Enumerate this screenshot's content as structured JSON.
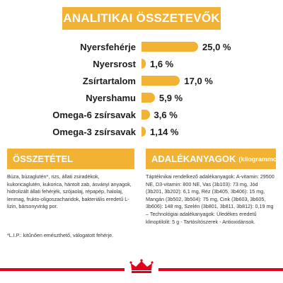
{
  "title": "ANALITIKAI ÖSSZETEVŐK",
  "colors": {
    "accent": "#f2b233",
    "brand": "#e2001a",
    "text": "#1c1c1c"
  },
  "nutrients": [
    {
      "label": "Nyersfehérje",
      "value_text": "25,0 %",
      "percent": 25.0
    },
    {
      "label": "Nyersrost",
      "value_text": "1,6 %",
      "percent": 1.6
    },
    {
      "label": "Zsírtartalom",
      "value_text": "17,0 %",
      "percent": 17.0
    },
    {
      "label": "Nyershamu",
      "value_text": "5,9 %",
      "percent": 5.9
    },
    {
      "label": "Omega-6 zsírsavak",
      "value_text": "3,6 %",
      "percent": 3.6
    },
    {
      "label": "Omega-3 zsírsavak",
      "value_text": "1,14 %",
      "percent": 1.14
    }
  ],
  "composition": {
    "header": "ÖSSZETÉTEL",
    "text": "Búza, búzaglutén*, rizs, állati zsiradékok, kukoricaglutén, kukorica, hántolt zab, ásványi anyagok, hidrolizált állati fehérjék, szójaolaj, répapép, halolaj, lenmag, frukto-oligoszacharidok, bakteriális eredetű L-lizin, bársonyvirág por.",
    "footnote": "*L.I.P.: kitűnően emészthető, válogatott fehérje."
  },
  "additives": {
    "header": "ADALÉKANYAGOK",
    "header_note": "(kilogrammonként)",
    "text": "Táptéknikai rendelkező adalékanyagok: A-vitamin: 29500 NE, D3-vitamin: 800 NE, Vas (3b103): 73 mg, Jód (3b201, 3b202): 6,1 mg, Réz (3b405, 3b406): 15 mg, Mangán (3b502, 3b504): 75 mg, Cink (3b603, 3b605, 3b606): 148 mg, Szelén (3b801, 3b811, 3b812): 0,19 mg – Technológiai adalékanyagok: Üledékes eredetű klinoptilolit: 5 g - Tartósítószerek - Antioxidánsok."
  },
  "logo_icon": "crown-icon"
}
